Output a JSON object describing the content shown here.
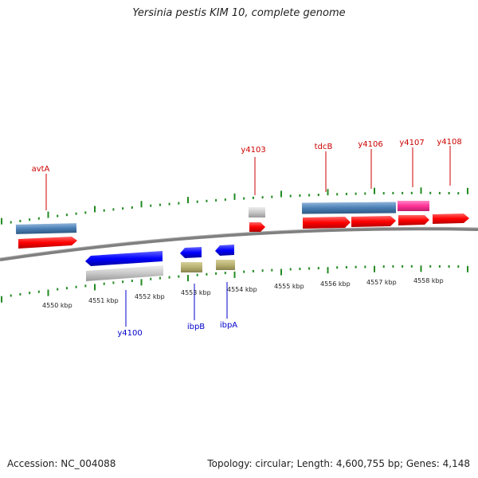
{
  "title": "Yersinia pestis KIM 10, complete genome",
  "footer": {
    "accession": "Accession: NC_004088",
    "summary": "Topology: circular; Length: 4,600,755 bp; Genes: 4,148"
  },
  "scale_labels": [
    "4550 kbp",
    "4551 kbp",
    "4552 kbp",
    "4553 kbp",
    "4554 kbp",
    "4555 kbp",
    "4556 kbp",
    "4557 kbp",
    "4558 kbp"
  ],
  "genes_top": [
    {
      "name": "avtA",
      "color": "#cc0000"
    },
    {
      "name": "y4103",
      "color": "#cc0000"
    },
    {
      "name": "tdcB",
      "color": "#cc0000"
    },
    {
      "name": "y4106",
      "color": "#cc0000"
    },
    {
      "name": "y4107",
      "color": "#cc0000"
    },
    {
      "name": "y4108",
      "color": "#cc0000"
    }
  ],
  "genes_bottom": [
    {
      "name": "y4100",
      "color": "#0000cc"
    },
    {
      "name": "ibpB",
      "color": "#0000cc"
    },
    {
      "name": "ibpA",
      "color": "#0000cc"
    }
  ],
  "colors": {
    "cds_forward": "#ff0000",
    "cds_reverse": "#0000ff",
    "gene_block": "#4a7fb5",
    "pseudo_grey": "#c8c8c8",
    "olive_feature": "#b8b070",
    "pink_feature": "#ff3399",
    "backbone": "#808080",
    "ticks": "#228b22"
  }
}
